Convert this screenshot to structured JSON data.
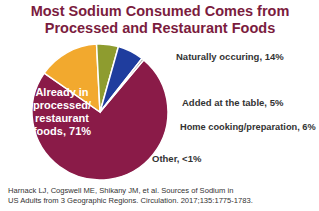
{
  "chart_data": {
    "type": "pie",
    "title": [
      "Most Sodium Consumed Comes from",
      "Processed and Restaurant Foods"
    ],
    "categories": [
      "Already in processed/restaurant foods",
      "Naturally occuring",
      "Added at the table",
      "Home cooking/preparation",
      "Other"
    ],
    "values": [
      71,
      14,
      5,
      6,
      0.5
    ],
    "value_labels": [
      "71%",
      "14%",
      "5%",
      "6%",
      "<1%"
    ],
    "colors": [
      "#8a1b48",
      "#f2a92e",
      "#8e9c2f",
      "#1f3d9e",
      "#8c8c8c"
    ],
    "data_labels": true,
    "source": [
      "Harnack LJ, Cogswell ME, Shikany JM, et al. Sources of Sodium in",
      "US Adults from 3 Geographic Regions. Circulation. 2017;135:1775-1783."
    ]
  }
}
